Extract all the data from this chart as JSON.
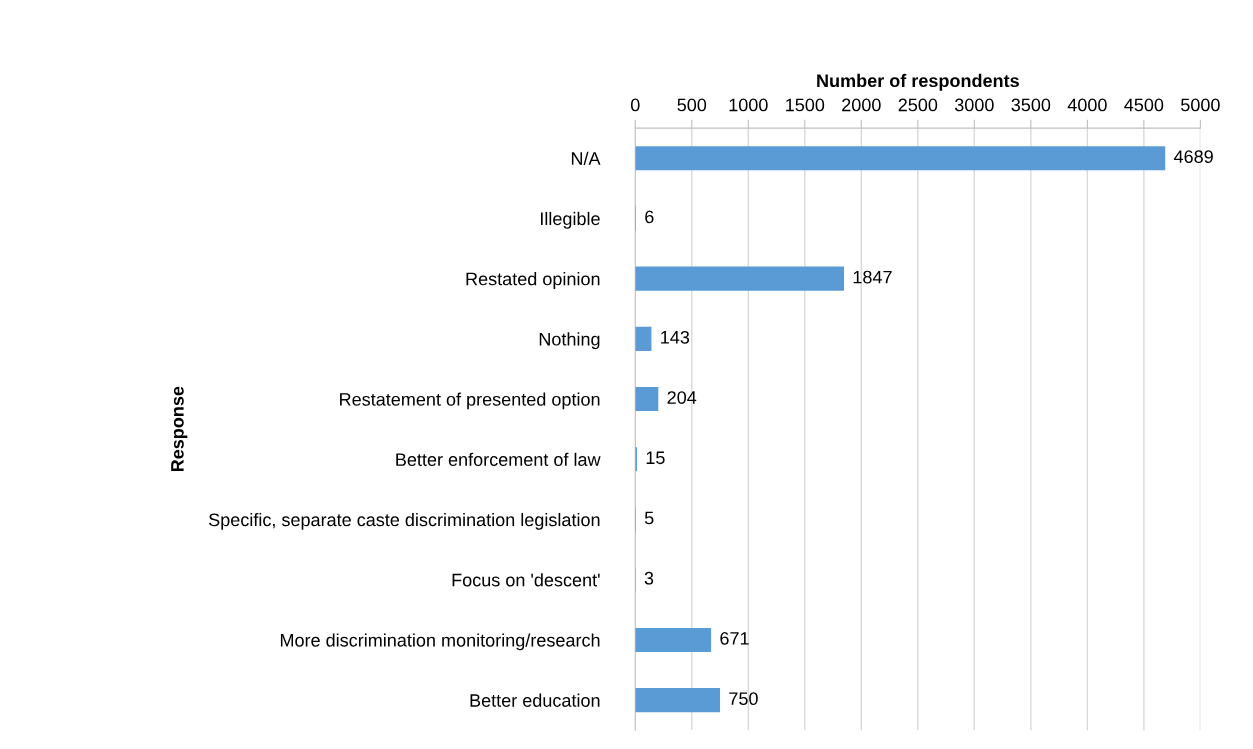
{
  "chart_data": {
    "type": "bar",
    "orientation": "horizontal",
    "xlabel": "Number of respondents",
    "ylabel": "Response",
    "categories": [
      "N/A",
      "Illegible",
      "Restated opinion",
      "Nothing",
      "Restatement of presented option",
      "Better enforcement of law",
      "Specific, separate caste discrimination legislation",
      "Focus on 'descent'",
      "More discrimination monitoring/research",
      "Better education"
    ],
    "values": [
      4689,
      6,
      1847,
      143,
      204,
      15,
      5,
      3,
      671,
      750
    ],
    "color": "#5b9bd5",
    "xlim": [
      0,
      5000
    ],
    "xticks": [
      0,
      500,
      1000,
      1500,
      2000,
      2500,
      3000,
      3500,
      4000,
      4500,
      5000
    ],
    "grid": "x",
    "data_labels": true,
    "legend": false
  }
}
